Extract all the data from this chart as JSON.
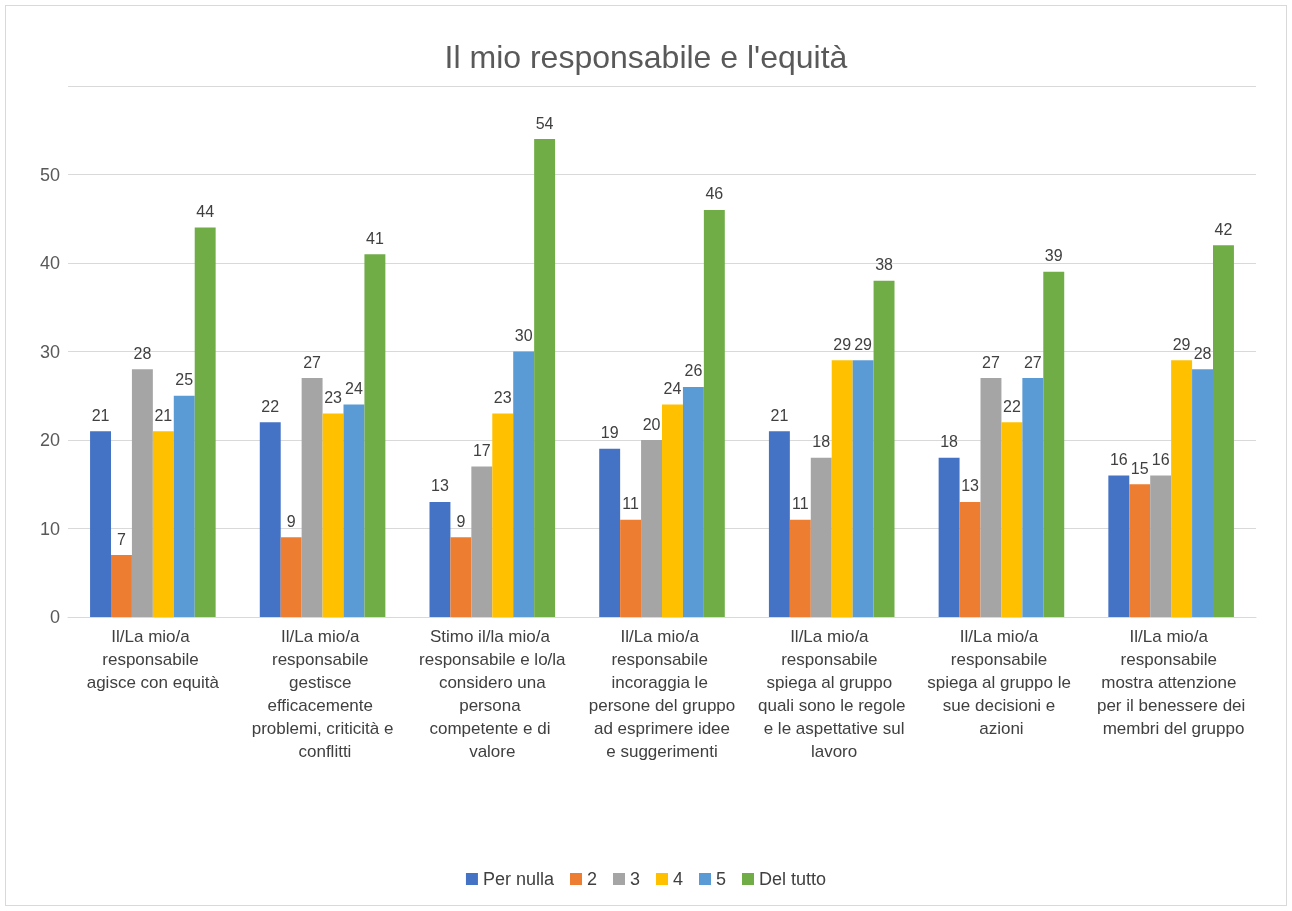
{
  "chart_data": {
    "type": "bar",
    "title": "Il mio responsabile e l'equità",
    "categories": [
      "Il/La mio/a responsabile agisce con equità",
      "Il/La mio/a responsabile gestisce efficacemente problemi, criticità e conflitti",
      "Stimo il/la mio/a responsabile e lo/la considero una persona competente e di valore",
      "Il/La mio/a responsabile incoraggia le persone del gruppo ad esprimere idee e suggerimenti",
      "Il/La mio/a responsabile spiega al gruppo quali sono le regole e le aspettative sul lavoro",
      "Il/La mio/a responsabile spiega al gruppo le sue decisioni e azioni",
      "Il/La mio/a responsabile mostra attenzione per il benessere dei membri del gruppo"
    ],
    "series": [
      {
        "name": "Per nulla",
        "color": "#4472c4",
        "values": [
          21,
          22,
          13,
          19,
          21,
          18,
          16
        ]
      },
      {
        "name": "2",
        "color": "#ed7d31",
        "values": [
          7,
          9,
          9,
          11,
          11,
          13,
          15
        ]
      },
      {
        "name": "3",
        "color": "#a5a5a5",
        "values": [
          28,
          27,
          17,
          20,
          18,
          27,
          16
        ]
      },
      {
        "name": "4",
        "color": "#ffc000",
        "values": [
          21,
          23,
          23,
          24,
          29,
          22,
          29
        ]
      },
      {
        "name": "5",
        "color": "#5b9bd5",
        "values": [
          25,
          24,
          30,
          26,
          29,
          27,
          28
        ]
      },
      {
        "name": "Del tutto",
        "color": "#70ad47",
        "values": [
          44,
          41,
          54,
          46,
          38,
          39,
          42
        ]
      }
    ],
    "ylim": [
      0,
      60
    ],
    "yticks": [
      0,
      10,
      20,
      30,
      40,
      50,
      {
        "value": 60,
        "label": null
      }
    ],
    "grid": "y",
    "legend": "bottom",
    "data_labels": true
  }
}
